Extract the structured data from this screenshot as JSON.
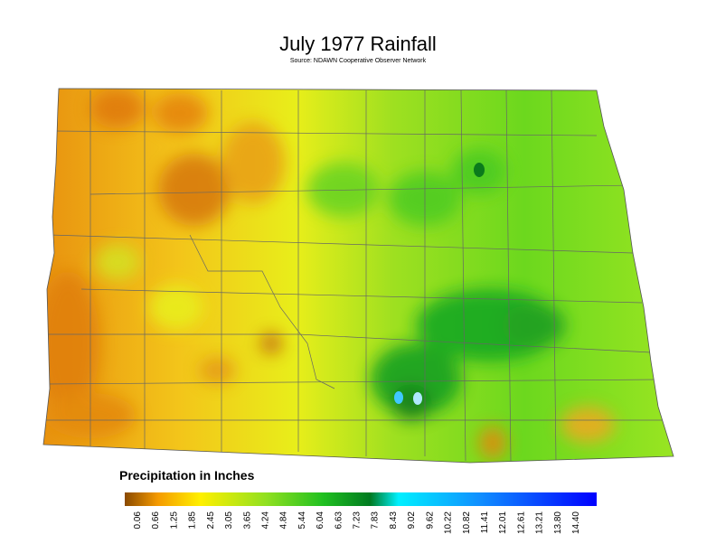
{
  "title": "July 1977 Rainfall",
  "subtitle": "Source: NDAWN Cooperative Observer Network",
  "legend": {
    "title": "Precipitation in Inches",
    "ticks": [
      "0.06",
      "0.66",
      "1.25",
      "1.85",
      "2.45",
      "3.05",
      "3.65",
      "4.24",
      "4.84",
      "5.44",
      "6.04",
      "6.63",
      "7.23",
      "7.83",
      "8.43",
      "9.02",
      "9.62",
      "10.22",
      "10.82",
      "11.41",
      "12.01",
      "12.61",
      "13.21",
      "13.80",
      "14.40"
    ]
  }
}
